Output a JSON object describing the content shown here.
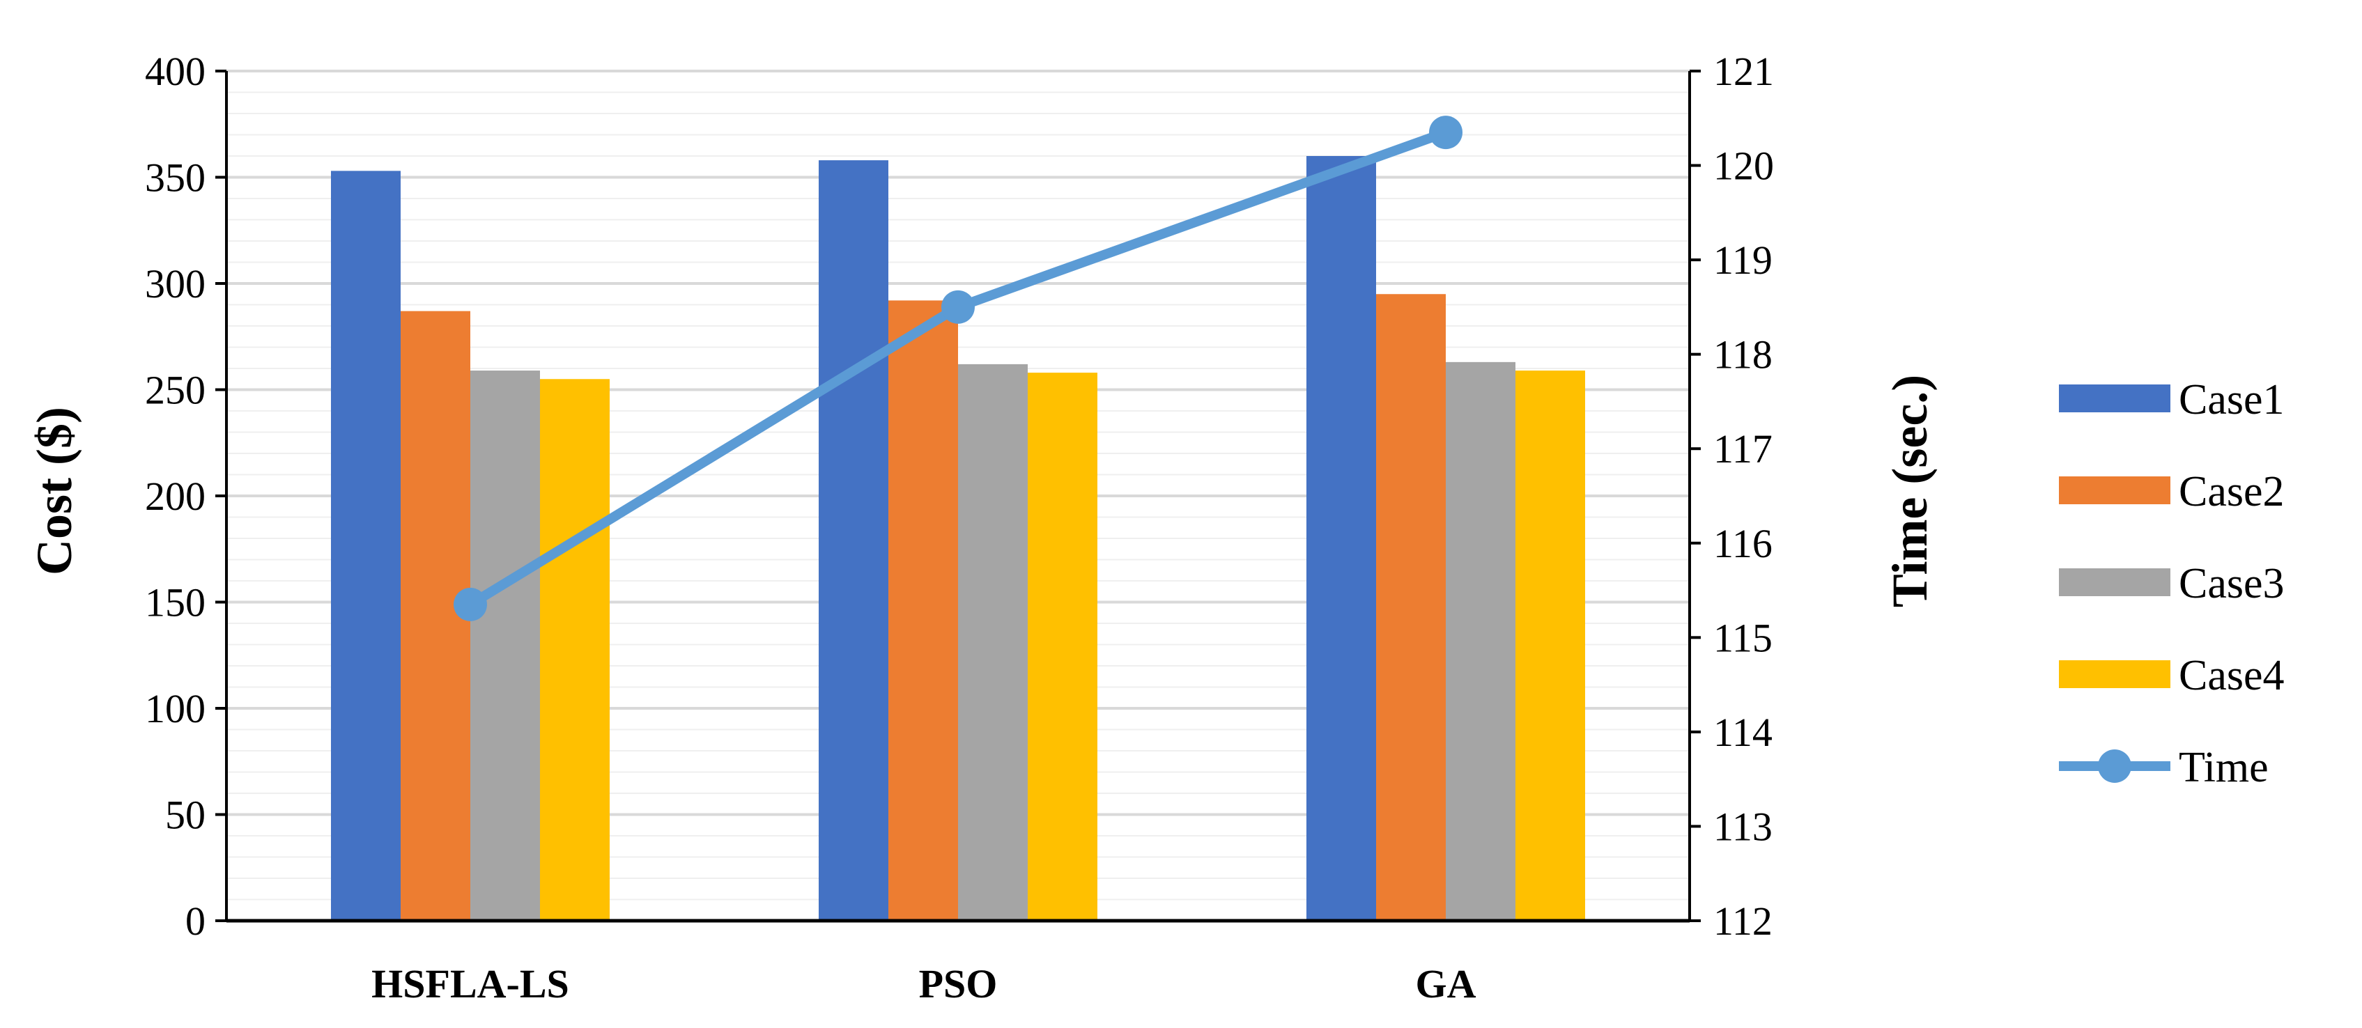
{
  "chart_data": {
    "type": "bar",
    "categories": [
      "HSFLA-LS",
      "PSO",
      "GA"
    ],
    "series": [
      {
        "name": "Case1",
        "values": [
          353,
          358,
          360
        ],
        "color": "#4472C4"
      },
      {
        "name": "Case2",
        "values": [
          287,
          292,
          295
        ],
        "color": "#ED7D31"
      },
      {
        "name": "Case3",
        "values": [
          259,
          262,
          263
        ],
        "color": "#A5A5A5"
      },
      {
        "name": "Case4",
        "values": [
          255,
          258,
          259
        ],
        "color": "#FFC000"
      }
    ],
    "line_series": {
      "name": "Time",
      "values": [
        115.35,
        118.5,
        120.35
      ],
      "color": "#5B9BD5",
      "axis": "right"
    },
    "ylabel": "Cost ($)",
    "y2label": "Time (sec.)",
    "ylim": [
      0,
      400
    ],
    "y2lim": [
      112,
      121
    ],
    "yticks": [
      0,
      50,
      100,
      150,
      200,
      250,
      300,
      350,
      400
    ],
    "y2ticks": [
      112,
      113,
      114,
      115,
      116,
      117,
      118,
      119,
      120,
      121
    ],
    "grid": true,
    "legend": "right"
  }
}
